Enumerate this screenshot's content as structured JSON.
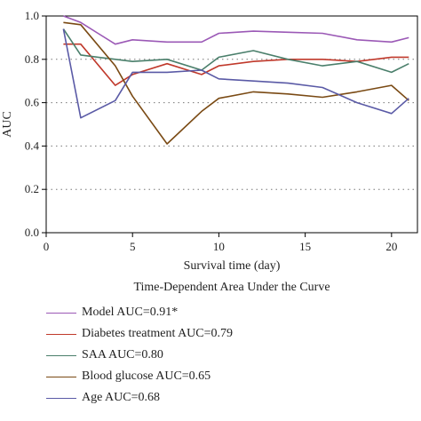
{
  "chart_data": {
    "type": "line",
    "title": "Time-Dependent Area Under the Curve",
    "xlabel": "Survival time (day)",
    "ylabel": "AUC",
    "xlim": [
      0,
      21.5
    ],
    "ylim": [
      0,
      1.0
    ],
    "xticks": [
      0,
      5,
      10,
      15,
      20
    ],
    "yticks": [
      0.0,
      0.2,
      0.4,
      0.6,
      0.8,
      1.0
    ],
    "ytick_labels": [
      "0.0",
      "0.2",
      "0.4",
      "0.6",
      "0.8",
      "1.0"
    ],
    "grid": "horizontal dotted",
    "series": [
      {
        "name": "Model AUC=0.91*",
        "color": "#9b59b6",
        "x": [
          1,
          2,
          3,
          4,
          5,
          7,
          9,
          10,
          12,
          14,
          16,
          18,
          20,
          21
        ],
        "y": [
          1.0,
          0.97,
          0.92,
          0.87,
          0.89,
          0.88,
          0.88,
          0.92,
          0.93,
          0.925,
          0.92,
          0.89,
          0.88,
          0.9
        ]
      },
      {
        "name": "Diabetes treatment AUC=0.79",
        "color": "#c0392b",
        "x": [
          1,
          2,
          4,
          5,
          7,
          9,
          10,
          12,
          14,
          16,
          18,
          20,
          21
        ],
        "y": [
          0.87,
          0.87,
          0.68,
          0.73,
          0.78,
          0.73,
          0.77,
          0.79,
          0.8,
          0.8,
          0.79,
          0.81,
          0.81
        ]
      },
      {
        "name": "SAA AUC=0.80",
        "color": "#4a7f6b",
        "x": [
          1,
          2,
          3,
          5,
          7,
          9,
          10,
          12,
          14,
          16,
          18,
          20,
          21
        ],
        "y": [
          0.94,
          0.82,
          0.81,
          0.79,
          0.8,
          0.75,
          0.81,
          0.84,
          0.8,
          0.77,
          0.79,
          0.74,
          0.78
        ]
      },
      {
        "name": "Blood glucose AUC=0.65",
        "color": "#7a4a14",
        "x": [
          1,
          2,
          4,
          5,
          7,
          9,
          10,
          12,
          14,
          16,
          18,
          20,
          21
        ],
        "y": [
          0.97,
          0.96,
          0.77,
          0.63,
          0.41,
          0.56,
          0.62,
          0.65,
          0.64,
          0.625,
          0.65,
          0.68,
          0.61
        ]
      },
      {
        "name": "Age AUC=0.68",
        "color": "#5a5aa6",
        "x": [
          1,
          2,
          4,
          5,
          7,
          9,
          10,
          12,
          14,
          16,
          18,
          20,
          21
        ],
        "y": [
          0.94,
          0.53,
          0.61,
          0.74,
          0.74,
          0.75,
          0.71,
          0.7,
          0.69,
          0.67,
          0.6,
          0.55,
          0.62
        ]
      }
    ]
  }
}
